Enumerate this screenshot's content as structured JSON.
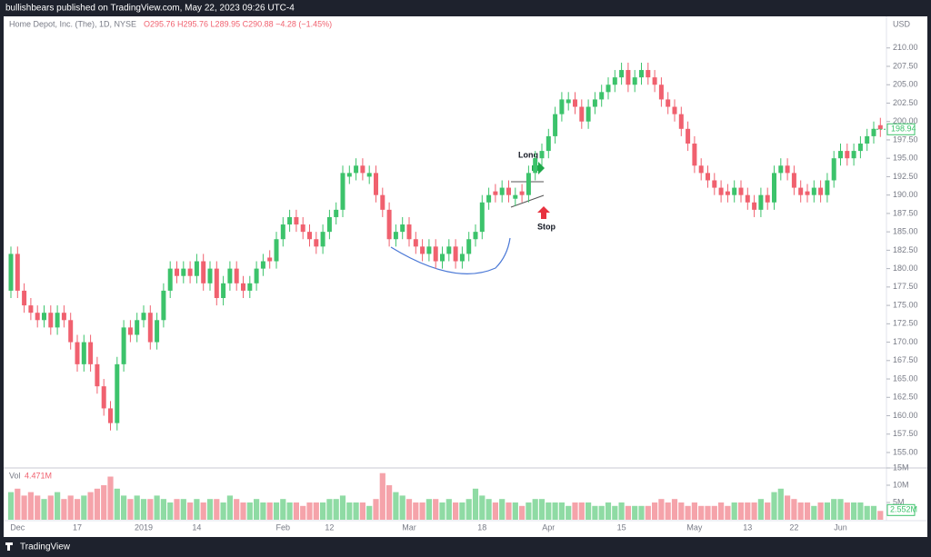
{
  "chart_data": {
    "type": "candlestick",
    "publisher": "bullishbears published on TradingView.com, May 22, 2023 09:26 UTC-4",
    "symbol": "Home Depot, Inc. (The), 1D, NYSE",
    "ohlc_text": "O295.76 H295.76 L289.95 C290.88 −4.28 (−1.45%)",
    "currency": "USD",
    "volume_title": "Vol",
    "volume_value": "4.471M",
    "brand": "TradingView",
    "annotations": [
      "Long",
      "Stop"
    ],
    "up_color": "#3cc36b",
    "down_color": "#f0616f",
    "up_volume_color": "#8fdba4",
    "down_volume_color": "#f5a3aa",
    "grid": false,
    "last_price": 198.94,
    "categories": [
      null,
      "Dec",
      null,
      null,
      null,
      null,
      null,
      null,
      null,
      null,
      "17",
      null,
      null,
      null,
      null,
      null,
      null,
      null,
      null,
      null,
      "2019",
      null,
      null,
      null,
      null,
      null,
      null,
      null,
      "14",
      null,
      null,
      null,
      null,
      null,
      null,
      null,
      null,
      null,
      null,
      null,
      null,
      "Feb",
      null,
      null,
      null,
      null,
      null,
      null,
      "12",
      null,
      null,
      null,
      null,
      null,
      null,
      null,
      null,
      null,
      null,
      null,
      "Mar",
      null,
      null,
      null,
      null,
      null,
      null,
      null,
      null,
      null,
      null,
      "18",
      null,
      null,
      null,
      null,
      null,
      null,
      null,
      null,
      null,
      "Apr",
      null,
      null,
      null,
      null,
      null,
      null,
      null,
      null,
      null,
      null,
      "15",
      null,
      null,
      null,
      null,
      null,
      null,
      null,
      null,
      null,
      null,
      "May",
      null,
      null,
      null,
      null,
      null,
      null,
      null,
      "13",
      null,
      null,
      null,
      null,
      null,
      null,
      "22",
      null,
      null,
      null,
      null,
      null,
      null,
      "Jun",
      null,
      null,
      null,
      null,
      null,
      null
    ],
    "open": [
      177,
      182,
      177,
      175,
      174,
      173,
      174,
      172,
      174,
      173,
      170,
      167,
      170,
      167,
      164,
      161,
      159,
      167,
      172,
      171,
      173,
      174,
      170,
      173,
      177,
      180,
      179,
      180,
      179,
      181,
      178,
      180,
      176,
      178,
      180,
      178,
      177,
      178,
      180,
      181.5,
      181,
      184,
      186,
      187,
      186,
      185,
      184,
      183,
      185,
      187,
      188,
      192.5,
      193,
      194,
      192.5,
      193,
      190,
      188,
      184,
      185,
      186,
      184,
      183,
      182,
      183,
      181,
      182,
      183,
      181,
      182,
      184,
      185,
      189,
      190.5,
      190,
      191,
      189.5,
      190.5,
      190,
      193,
      195,
      196,
      198,
      201,
      202.5,
      203,
      202,
      200,
      202,
      203,
      204,
      205,
      206,
      207,
      205,
      206,
      207,
      206,
      205,
      203,
      202,
      201,
      199,
      197,
      194,
      193,
      192,
      191,
      190.5,
      190,
      191,
      190,
      189,
      188,
      190,
      189,
      193,
      194,
      193,
      191,
      190.5,
      190,
      191,
      190,
      192,
      195,
      196,
      195,
      196,
      197,
      198,
      199.5
    ],
    "high": [
      183,
      183,
      178,
      176,
      175,
      175,
      175,
      175,
      175,
      174,
      171,
      171,
      171,
      168,
      165,
      162,
      168,
      173,
      173,
      174,
      175,
      175,
      174,
      178,
      181,
      181,
      181,
      181,
      182,
      182,
      181,
      181,
      179,
      181,
      181,
      179,
      179,
      181,
      182,
      182.5,
      185,
      187,
      188,
      188,
      187,
      186,
      185,
      186,
      188,
      189,
      194,
      194,
      195,
      195,
      194,
      194,
      191,
      189,
      186,
      187,
      187,
      185,
      184,
      184,
      184,
      183,
      184,
      184,
      183,
      185,
      186,
      190,
      191,
      191.5,
      192,
      192,
      191,
      191.5,
      194,
      196,
      197,
      199,
      202,
      204,
      204,
      204,
      203,
      203,
      204,
      205,
      206,
      207,
      208,
      208,
      207,
      208,
      208,
      207,
      206,
      204,
      203,
      202,
      200,
      198,
      195,
      194,
      193,
      192,
      191.5,
      192,
      192,
      191,
      190,
      191,
      191,
      194,
      195,
      195,
      194,
      192,
      191.5,
      192,
      192,
      193,
      196,
      197,
      197,
      197,
      198,
      199,
      200,
      200.5
    ],
    "low": [
      176,
      176,
      174,
      173,
      172,
      172,
      171,
      171,
      172,
      169,
      166,
      166,
      166,
      163,
      160,
      158,
      158,
      166,
      170,
      170,
      172,
      169,
      169,
      172,
      176,
      178,
      178,
      178,
      178,
      177,
      177,
      175,
      175,
      177,
      177,
      176,
      176,
      177,
      179,
      180,
      180,
      183,
      185,
      185,
      184,
      183,
      182,
      182,
      184,
      186,
      187,
      191.5,
      192,
      192,
      191.5,
      189,
      187,
      183,
      183,
      184,
      183,
      182,
      181,
      181,
      180,
      180,
      181,
      180,
      180,
      181,
      183,
      184,
      188,
      189,
      189,
      189,
      188.5,
      189,
      189,
      192,
      194,
      195,
      197,
      200,
      201.5,
      201,
      199,
      199,
      201,
      202,
      203,
      204,
      205,
      204,
      204,
      205,
      205,
      204,
      202,
      201,
      200,
      198,
      196,
      193,
      192,
      191,
      190,
      189,
      189,
      189,
      189,
      188,
      187,
      187,
      188,
      188,
      192,
      192,
      190,
      189,
      189,
      189,
      189,
      189,
      191,
      194,
      194,
      194,
      195,
      196,
      197,
      197.9
    ],
    "close": [
      182,
      177,
      175,
      174,
      173,
      174,
      172,
      174,
      173,
      170,
      167,
      170,
      167,
      164,
      161,
      159,
      167,
      172,
      171,
      173,
      174,
      170,
      173,
      177,
      180,
      179,
      180,
      179,
      181,
      178,
      180,
      176,
      178,
      180,
      178,
      177,
      178,
      180,
      181,
      181,
      184,
      186,
      187,
      186,
      185,
      184,
      183,
      185,
      187,
      188,
      193,
      193,
      194,
      193,
      193,
      190,
      188,
      184,
      185,
      186,
      184,
      183,
      182,
      183,
      181,
      182,
      183,
      181,
      182,
      184,
      185,
      189,
      190,
      190,
      191,
      190,
      190,
      190,
      193,
      195,
      196,
      198,
      201,
      203,
      203,
      202,
      200,
      202,
      203,
      204,
      205,
      206,
      207,
      205,
      206,
      207,
      206,
      205,
      203,
      202,
      201,
      199,
      197,
      194,
      193,
      192,
      191,
      190,
      190,
      191,
      190,
      189,
      188,
      190,
      189,
      193,
      194,
      193,
      191,
      190,
      190,
      191,
      190,
      192,
      195,
      196,
      195,
      196,
      197,
      198,
      199,
      198.94
    ],
    "volume": [
      8000000,
      9000000,
      7000000,
      8000000,
      7000000,
      6000000,
      7000000,
      8000000,
      6000000,
      7000000,
      6000000,
      7000000,
      8000000,
      9000000,
      10000000,
      12500000,
      9000000,
      7000000,
      6000000,
      7000000,
      6000000,
      6000000,
      7000000,
      6000000,
      5000000,
      6000000,
      6000000,
      5000000,
      6000000,
      5000000,
      6000000,
      6000000,
      5000000,
      7000000,
      6000000,
      5000000,
      5000000,
      6000000,
      5000000,
      5000000,
      5000000,
      6000000,
      5000000,
      5000000,
      4000000,
      5000000,
      5000000,
      5000000,
      6000000,
      6000000,
      7000000,
      5000000,
      5000000,
      5000000,
      4000000,
      6000000,
      13500000,
      10000000,
      8000000,
      7000000,
      6000000,
      5000000,
      5000000,
      6000000,
      6000000,
      5000000,
      6000000,
      5000000,
      5000000,
      6000000,
      9000000,
      7000000,
      6000000,
      5000000,
      6000000,
      5000000,
      5000000,
      4000000,
      5000000,
      6000000,
      6000000,
      5000000,
      5000000,
      5000000,
      4000000,
      5000000,
      5000000,
      5000000,
      4000000,
      4000000,
      5000000,
      4000000,
      5000000,
      4000000,
      4000000,
      4000000,
      4000000,
      5000000,
      6000000,
      5000000,
      6000000,
      5000000,
      4000000,
      5000000,
      4000000,
      4000000,
      4000000,
      5000000,
      4000000,
      5000000,
      5000000,
      5000000,
      5000000,
      6000000,
      5000000,
      8000000,
      9000000,
      7000000,
      6000000,
      5000000,
      5000000,
      4000000,
      5000000,
      5000000,
      6000000,
      6000000,
      5000000,
      5000000,
      5000000,
      4000000,
      4000000,
      2552000
    ],
    "volume_value_labels": {
      "131": "2.552M"
    },
    "ylim": [
      152.9,
      213.8
    ],
    "yticks": [
      {
        "value": 155,
        "label": "155.00"
      },
      {
        "value": 157.5,
        "label": "157.50"
      },
      {
        "value": 160,
        "label": "160.00"
      },
      {
        "value": 162.5,
        "label": "162.50"
      },
      {
        "value": 165,
        "label": "165.00"
      },
      {
        "value": 167.5,
        "label": "167.50"
      },
      {
        "value": 170,
        "label": "170.00"
      },
      {
        "value": 172.5,
        "label": "172.50"
      },
      {
        "value": 175,
        "label": "175.00"
      },
      {
        "value": 177.5,
        "label": "177.50"
      },
      {
        "value": 180,
        "label": "180.00"
      },
      {
        "value": 182.5,
        "label": "182.50"
      },
      {
        "value": 185,
        "label": "185.00"
      },
      {
        "value": 187.5,
        "label": "187.50"
      },
      {
        "value": 190,
        "label": "190.00"
      },
      {
        "value": 192.5,
        "label": "192.50"
      },
      {
        "value": 195,
        "label": "195.00"
      },
      {
        "value": 197.5,
        "label": "197.50"
      },
      {
        "value": 200,
        "label": "200.00"
      },
      {
        "value": 202.5,
        "label": "202.50"
      },
      {
        "value": 205,
        "label": "205.00"
      },
      {
        "value": 207.5,
        "label": "207.50"
      },
      {
        "value": 210,
        "label": "210.00"
      }
    ],
    "vlim": [
      0,
      15000000
    ],
    "vticks": [
      {
        "value": 5000000,
        "label": "5M"
      },
      {
        "value": 10000000,
        "label": "10M"
      },
      {
        "value": 15000000,
        "label": "15M"
      }
    ]
  }
}
